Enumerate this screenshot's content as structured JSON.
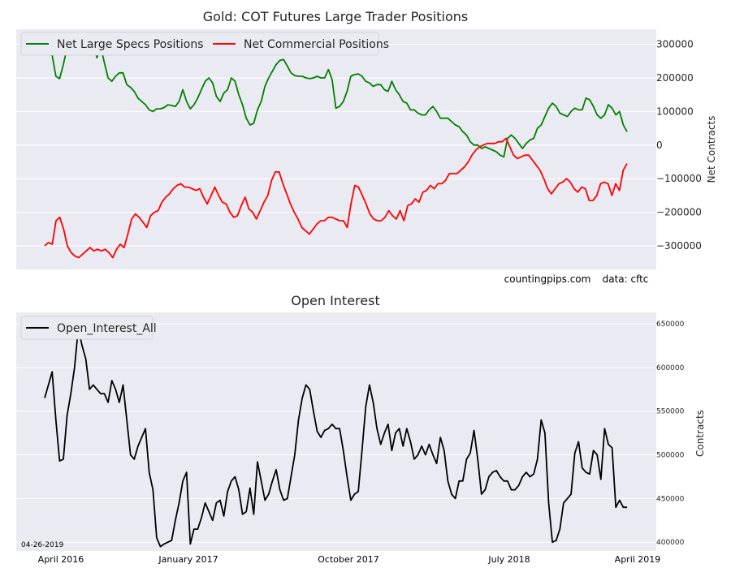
{
  "chart_data": [
    {
      "type": "line",
      "title": "Gold: COT Futures Large Trader Positions",
      "ylabel": "Net Contracts",
      "ylim": [
        -370000,
        345000
      ],
      "yticks": [
        -300000,
        -200000,
        -100000,
        0,
        100000,
        200000,
        300000
      ],
      "yticklabels": [
        "−300000",
        "−200000",
        "−100000",
        "0",
        "100000",
        "200000",
        "300000"
      ],
      "grid": true,
      "legend": "upper-left",
      "annotations": [
        "countingpips.com",
        "data: cftc"
      ],
      "series": [
        {
          "name": "Net Large Specs Positions",
          "color": "#008000",
          "values": [
            280000,
            270000,
            268000,
            205000,
            198000,
            240000,
            290000,
            305000,
            312000,
            300000,
            292000,
            302000,
            288000,
            300000,
            260000,
            295000,
            245000,
            200000,
            190000,
            205000,
            215000,
            215000,
            180000,
            172000,
            160000,
            140000,
            130000,
            120000,
            105000,
            100000,
            108000,
            108000,
            112000,
            120000,
            118000,
            115000,
            130000,
            165000,
            130000,
            108000,
            120000,
            140000,
            165000,
            190000,
            200000,
            185000,
            145000,
            130000,
            155000,
            165000,
            200000,
            190000,
            150000,
            120000,
            80000,
            60000,
            65000,
            105000,
            130000,
            175000,
            200000,
            220000,
            240000,
            252000,
            255000,
            235000,
            215000,
            207000,
            205000,
            205000,
            200000,
            198000,
            200000,
            205000,
            200000,
            200000,
            225000,
            195000,
            110000,
            115000,
            130000,
            160000,
            205000,
            210000,
            212000,
            205000,
            190000,
            185000,
            175000,
            180000,
            180000,
            165000,
            160000,
            190000,
            165000,
            150000,
            130000,
            125000,
            105000,
            105000,
            95000,
            90000,
            90000,
            105000,
            115000,
            100000,
            80000,
            80000,
            80000,
            70000,
            60000,
            55000,
            40000,
            30000,
            10000,
            0,
            0,
            -10000,
            -5000,
            -10000,
            -15000,
            -20000,
            -30000,
            -35000,
            20000,
            30000,
            20000,
            5000,
            -10000,
            5000,
            15000,
            20000,
            50000,
            60000,
            85000,
            110000,
            125000,
            115000,
            95000,
            90000,
            85000,
            100000,
            110000,
            105000,
            105000,
            140000,
            135000,
            115000,
            90000,
            80000,
            90000,
            120000,
            110000,
            90000,
            100000,
            60000,
            40000
          ]
        },
        {
          "name": "Net Commercial Positions",
          "color": "#ff0000",
          "values": [
            -300000,
            -290000,
            -295000,
            -225000,
            -215000,
            -250000,
            -300000,
            -320000,
            -330000,
            -335000,
            -325000,
            -315000,
            -305000,
            -315000,
            -310000,
            -315000,
            -310000,
            -320000,
            -335000,
            -310000,
            -295000,
            -305000,
            -265000,
            -220000,
            -205000,
            -215000,
            -230000,
            -245000,
            -210000,
            -200000,
            -195000,
            -170000,
            -155000,
            -145000,
            -130000,
            -120000,
            -115000,
            -125000,
            -125000,
            -130000,
            -135000,
            -130000,
            -155000,
            -175000,
            -150000,
            -125000,
            -150000,
            -170000,
            -175000,
            -200000,
            -215000,
            -210000,
            -180000,
            -155000,
            -190000,
            -200000,
            -220000,
            -195000,
            -170000,
            -150000,
            -105000,
            -80000,
            -80000,
            -115000,
            -145000,
            -175000,
            -200000,
            -220000,
            -245000,
            -255000,
            -265000,
            -250000,
            -235000,
            -225000,
            -225000,
            -215000,
            -215000,
            -220000,
            -225000,
            -225000,
            -245000,
            -175000,
            -120000,
            -125000,
            -150000,
            -175000,
            -205000,
            -220000,
            -225000,
            -225000,
            -215000,
            -195000,
            -210000,
            -220000,
            -195000,
            -225000,
            -180000,
            -175000,
            -160000,
            -170000,
            -140000,
            -135000,
            -120000,
            -130000,
            -115000,
            -115000,
            -105000,
            -85000,
            -85000,
            -85000,
            -75000,
            -65000,
            -50000,
            -30000,
            -15000,
            -5000,
            0,
            5000,
            5000,
            5000,
            10000,
            10000,
            20000,
            -5000,
            -30000,
            -40000,
            -35000,
            -30000,
            -30000,
            -45000,
            -60000,
            -75000,
            -100000,
            -130000,
            -145000,
            -130000,
            -115000,
            -110000,
            -100000,
            -110000,
            -130000,
            -140000,
            -125000,
            -130000,
            -165000,
            -165000,
            -150000,
            -115000,
            -110000,
            -115000,
            -150000,
            -115000,
            -135000,
            -75000,
            -55000
          ]
        }
      ]
    },
    {
      "type": "line",
      "title": "Open Interest",
      "ylabel": "Contracts",
      "ylim": [
        390000,
        663000
      ],
      "yticks": [
        400000,
        450000,
        500000,
        550000,
        600000,
        650000
      ],
      "yticklabels": [
        "400000",
        "450000",
        "500000",
        "550000",
        "600000",
        "650000"
      ],
      "grid": true,
      "legend": "upper-left",
      "date_label": "04-26-2019",
      "xticklabels": [
        "April 2016",
        "January 2017",
        "October 2017",
        "July 2018",
        "April 2019"
      ],
      "series": [
        {
          "name": "Open_Interest_All",
          "color": "#000000",
          "values": [
            565000,
            580000,
            595000,
            540000,
            493000,
            495000,
            545000,
            570000,
            600000,
            645000,
            625000,
            610000,
            575000,
            580000,
            575000,
            570000,
            570000,
            560000,
            585000,
            575000,
            560000,
            580000,
            540000,
            500000,
            495000,
            510000,
            520000,
            530000,
            480000,
            460000,
            405000,
            395000,
            398000,
            400000,
            402000,
            425000,
            445000,
            470000,
            480000,
            398000,
            415000,
            415000,
            428000,
            445000,
            435000,
            425000,
            445000,
            448000,
            430000,
            458000,
            470000,
            475000,
            460000,
            432000,
            435000,
            462000,
            432000,
            492000,
            470000,
            448000,
            455000,
            470000,
            483000,
            460000,
            448000,
            450000,
            475000,
            500000,
            540000,
            565000,
            580000,
            575000,
            550000,
            527000,
            520000,
            528000,
            530000,
            535000,
            530000,
            530000,
            505000,
            475000,
            448000,
            455000,
            458000,
            505000,
            555000,
            580000,
            560000,
            530000,
            512000,
            525000,
            535000,
            505000,
            525000,
            530000,
            510000,
            530000,
            515000,
            495000,
            500000,
            510000,
            500000,
            512000,
            500000,
            490000,
            520000,
            505000,
            470000,
            455000,
            450000,
            470000,
            470000,
            495000,
            502000,
            528000,
            495000,
            455000,
            460000,
            475000,
            480000,
            482000,
            475000,
            470000,
            470000,
            460000,
            460000,
            465000,
            475000,
            480000,
            475000,
            478000,
            495000,
            540000,
            525000,
            445000,
            400000,
            402000,
            415000,
            445000,
            450000,
            455000,
            502000,
            515000,
            485000,
            480000,
            478000,
            505000,
            500000,
            472000,
            530000,
            512000,
            508000,
            440000,
            448000,
            440000,
            440000
          ]
        }
      ]
    }
  ]
}
